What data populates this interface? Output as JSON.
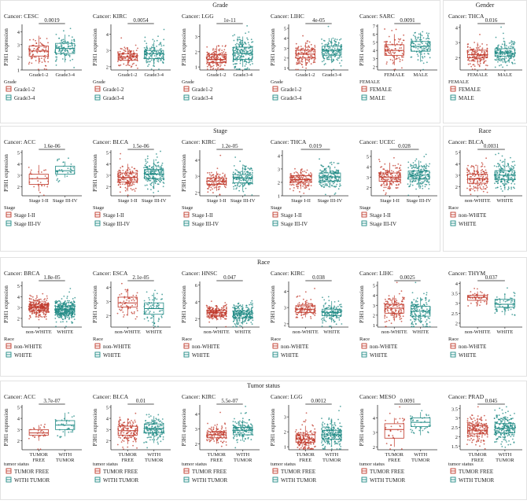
{
  "colors": {
    "group1": "#c0392b",
    "group2": "#1f8a84",
    "frame": "#222222",
    "axis": "#333333"
  },
  "sections": [
    {
      "label": "Grade",
      "panels": [
        0,
        1,
        2,
        3,
        4
      ]
    },
    {
      "label": "Gender",
      "panels": [
        5
      ]
    },
    {
      "label": "Stage",
      "panels": [
        6,
        7,
        8,
        9,
        10
      ]
    },
    {
      "label": "Race",
      "panels": [
        11
      ]
    },
    {
      "label": "Race",
      "panels": [
        12,
        13,
        14,
        15,
        16,
        17
      ]
    },
    {
      "label": "Tumor status",
      "panels": [
        18,
        19,
        20,
        21,
        22,
        23
      ]
    }
  ],
  "chart_data": [
    {
      "type": "box",
      "title": "Cancer: CESC",
      "ylabel": "P3H1 expression",
      "categories": [
        "Grade1-2",
        "Grade3-4"
      ],
      "medians": [
        2.5,
        2.7
      ],
      "q1": [
        2.1,
        2.3
      ],
      "q3": [
        2.9,
        3.1
      ],
      "whisker_low": [
        1.5,
        1.6
      ],
      "whisker_high": [
        3.7,
        3.8
      ],
      "ylim": [
        1.0,
        4.6
      ],
      "yticks": [
        1,
        2,
        3,
        4
      ],
      "pvalue": "0.0019",
      "legend_title": "Grade",
      "legend": [
        "Grade1-2",
        "Grade3-4"
      ]
    },
    {
      "type": "box",
      "title": "Cancer: KIRC",
      "ylabel": "P3H1 expression",
      "categories": [
        "Grade1-2",
        "Grade3-4"
      ],
      "medians": [
        2.6,
        2.8
      ],
      "q1": [
        2.4,
        2.5
      ],
      "q3": [
        2.8,
        3.0
      ],
      "whisker_low": [
        2.1,
        2.1
      ],
      "whisker_high": [
        3.2,
        3.5
      ],
      "ylim": [
        1.8,
        4.6
      ],
      "yticks": [
        2,
        3,
        4
      ],
      "pvalue": "0.0054",
      "legend_title": "Grade",
      "legend": [
        "Grade1-2",
        "Grade3-4"
      ]
    },
    {
      "type": "box",
      "title": "Cancer: LGG",
      "ylabel": "P3H1 expression",
      "categories": [
        "Grade1-2",
        "Grade3-4"
      ],
      "medians": [
        1.5,
        1.9
      ],
      "q1": [
        1.3,
        1.5
      ],
      "q3": [
        1.8,
        2.3
      ],
      "whisker_low": [
        1.0,
        1.0
      ],
      "whisker_high": [
        2.4,
        3.0
      ],
      "ylim": [
        0.8,
        3.8
      ],
      "yticks": [
        1,
        2,
        3
      ],
      "pvalue": "1e-11",
      "legend_title": "Grade",
      "legend": [
        "Grade1-2",
        "Grade3-4"
      ]
    },
    {
      "type": "box",
      "title": "Cancer: LIHC",
      "ylabel": "P3H1 expression",
      "categories": [
        "Grade1-2",
        "Grade3-4"
      ],
      "medians": [
        2.4,
        2.8
      ],
      "q1": [
        2.0,
        2.3
      ],
      "q3": [
        2.8,
        3.2
      ],
      "whisker_low": [
        1.4,
        1.5
      ],
      "whisker_high": [
        3.6,
        4.0
      ],
      "ylim": [
        0.8,
        5.4
      ],
      "yticks": [
        1,
        2,
        3,
        4,
        5
      ],
      "pvalue": "4e-05",
      "legend_title": "Grade",
      "legend": [
        "Grade1-2",
        "Grade3-4"
      ]
    },
    {
      "type": "box",
      "title": "Cancer: SARC",
      "ylabel": "P3H1 expression",
      "categories": [
        "FEMALE",
        "MALE"
      ],
      "medians": [
        4.0,
        4.5
      ],
      "q1": [
        3.4,
        3.9
      ],
      "q3": [
        4.7,
        5.1
      ],
      "whisker_low": [
        2.2,
        2.6
      ],
      "whisker_high": [
        6.0,
        6.2
      ],
      "ylim": [
        1.6,
        7.2
      ],
      "yticks": [
        2,
        3,
        4,
        5,
        6,
        7
      ],
      "pvalue": "0.0091",
      "legend_title": "FEMALE",
      "legend": [
        "FEMALE",
        "MALE"
      ]
    },
    {
      "type": "box",
      "title": "Cancer: THCA",
      "ylabel": "",
      "categories": [
        "FEMALE",
        "MALE"
      ],
      "medians": [
        2.2,
        2.3
      ],
      "q1": [
        2.0,
        2.1
      ],
      "q3": [
        2.5,
        2.6
      ],
      "whisker_low": [
        1.6,
        1.7
      ],
      "whisker_high": [
        3.0,
        3.1
      ],
      "ylim": [
        1.2,
        4.2
      ],
      "yticks": [
        2,
        3,
        4
      ],
      "pvalue": "0.016",
      "legend_title": "FEMALE",
      "legend": [
        "FEMALE",
        "MALE"
      ]
    },
    {
      "type": "box",
      "title": "Cancer: ACC",
      "ylabel": "P3H1 expression",
      "categories": [
        "Stage I-II",
        "Stage III-IV"
      ],
      "medians": [
        2.7,
        3.4
      ],
      "q1": [
        2.2,
        3.1
      ],
      "q3": [
        3.1,
        3.8
      ],
      "whisker_low": [
        1.6,
        2.8
      ],
      "whisker_high": [
        3.9,
        4.2
      ],
      "ylim": [
        1.2,
        5.2
      ],
      "yticks": [
        2,
        3,
        4,
        5
      ],
      "pvalue": "1.6e-06",
      "legend_title": "Stage",
      "legend": [
        "Stage I-II",
        "Stage III-IV"
      ]
    },
    {
      "type": "box",
      "title": "Cancer: BLCA",
      "ylabel": "P3H1 expression",
      "categories": [
        "Stage I-II",
        "Stage III-IV"
      ],
      "medians": [
        2.8,
        3.1
      ],
      "q1": [
        2.4,
        2.7
      ],
      "q3": [
        3.2,
        3.5
      ],
      "whisker_low": [
        1.6,
        1.8
      ],
      "whisker_high": [
        4.0,
        4.4
      ],
      "ylim": [
        1.2,
        5.2
      ],
      "yticks": [
        2,
        3,
        4,
        5
      ],
      "pvalue": "1.5e-06",
      "legend_title": "Stage",
      "legend": [
        "Stage I-II",
        "Stage III-IV"
      ]
    },
    {
      "type": "box",
      "title": "Cancer: KIRC",
      "ylabel": "P3H1 expression",
      "categories": [
        "Stage I-II",
        "Stage III-IV"
      ],
      "medians": [
        2.7,
        2.9
      ],
      "q1": [
        2.5,
        2.6
      ],
      "q3": [
        2.9,
        3.1
      ],
      "whisker_low": [
        2.1,
        2.1
      ],
      "whisker_high": [
        3.3,
        3.6
      ],
      "ylim": [
        1.8,
        4.6
      ],
      "yticks": [
        2,
        3,
        4
      ],
      "pvalue": "1.2e-05",
      "legend_title": "Stage",
      "legend": [
        "Stage I-II",
        "Stage III-IV"
      ]
    },
    {
      "type": "box",
      "title": "Cancer: THCA",
      "ylabel": "",
      "categories": [
        "Stage I-II",
        "Stage III-IV"
      ],
      "medians": [
        2.2,
        2.4
      ],
      "q1": [
        2.0,
        2.1
      ],
      "q3": [
        2.5,
        2.7
      ],
      "whisker_low": [
        1.5,
        1.6
      ],
      "whisker_high": [
        3.0,
        3.2
      ],
      "ylim": [
        1.0,
        4.4
      ],
      "yticks": [
        1,
        2,
        3,
        4
      ],
      "pvalue": "0.019",
      "legend_title": "Stage",
      "legend": [
        "Stage I-II",
        "Stage III-IV"
      ]
    },
    {
      "type": "box",
      "title": "Cancer: UCEC",
      "ylabel": "",
      "categories": [
        "Stage I-II",
        "Stage III-IV"
      ],
      "medians": [
        3.0,
        3.2
      ],
      "q1": [
        2.6,
        2.8
      ],
      "q3": [
        3.4,
        3.6
      ],
      "whisker_low": [
        1.8,
        2.0
      ],
      "whisker_high": [
        4.4,
        4.6
      ],
      "ylim": [
        1.2,
        5.6
      ],
      "yticks": [
        2,
        3,
        4,
        5
      ],
      "pvalue": "0.028",
      "legend_title": "Stage",
      "legend": [
        "Stage I-II",
        "Stage III-IV"
      ]
    },
    {
      "type": "box",
      "title": "Cancer: BLCA",
      "ylabel": "",
      "categories": [
        "non-WHITE",
        "WHITE"
      ],
      "medians": [
        2.7,
        3.0
      ],
      "q1": [
        2.3,
        2.6
      ],
      "q3": [
        3.1,
        3.4
      ],
      "whisker_low": [
        1.6,
        1.7
      ],
      "whisker_high": [
        3.9,
        4.3
      ],
      "ylim": [
        1.2,
        5.2
      ],
      "yticks": [
        2,
        3,
        4,
        5
      ],
      "pvalue": "0.0031",
      "legend_title": "Race",
      "legend": [
        "non-WHITE",
        "WHITE"
      ]
    },
    {
      "type": "box",
      "title": "Cancer: BRCA",
      "ylabel": "P3H1 expression",
      "categories": [
        "non-WHITE",
        "WHITE"
      ],
      "medians": [
        3.0,
        2.8
      ],
      "q1": [
        2.7,
        2.5
      ],
      "q3": [
        3.3,
        3.1
      ],
      "whisker_low": [
        2.1,
        1.9
      ],
      "whisker_high": [
        3.8,
        3.6
      ],
      "ylim": [
        1.2,
        5.4
      ],
      "yticks": [
        2,
        3,
        4,
        5
      ],
      "pvalue": "1.8e-05",
      "legend_title": "Race",
      "legend": [
        "non-WHITE",
        "WHITE"
      ]
    },
    {
      "type": "box",
      "title": "Cancer: ESCA",
      "ylabel": "P3H1 expression",
      "categories": [
        "non-WHITE",
        "WHITE"
      ],
      "medians": [
        2.9,
        2.5
      ],
      "q1": [
        2.6,
        2.1
      ],
      "q3": [
        3.3,
        2.9
      ],
      "whisker_low": [
        2.0,
        1.4
      ],
      "whisker_high": [
        3.9,
        3.6
      ],
      "ylim": [
        1.2,
        4.4
      ],
      "yticks": [
        2,
        3,
        4
      ],
      "pvalue": "2.1e-05",
      "legend_title": "Race",
      "legend": [
        "non-WHITE",
        "WHITE"
      ]
    },
    {
      "type": "box",
      "title": "Cancer: HNSC",
      "ylabel": "P3H1 expression",
      "categories": [
        "non-WHITE",
        "WHITE"
      ],
      "medians": [
        2.7,
        2.5
      ],
      "q1": [
        2.4,
        2.1
      ],
      "q3": [
        3.0,
        2.9
      ],
      "whisker_low": [
        1.8,
        1.3
      ],
      "whisker_high": [
        3.6,
        3.7
      ],
      "ylim": [
        1.0,
        6.4
      ],
      "yticks": [
        2,
        4,
        6
      ],
      "pvalue": "0.047",
      "legend_title": "Race",
      "legend": [
        "non-WHITE",
        "WHITE"
      ]
    },
    {
      "type": "box",
      "title": "Cancer: KIRC",
      "ylabel": "P3H1 expression",
      "categories": [
        "non-WHITE",
        "WHITE"
      ],
      "medians": [
        2.9,
        2.7
      ],
      "q1": [
        2.7,
        2.5
      ],
      "q3": [
        3.1,
        2.9
      ],
      "whisker_low": [
        2.4,
        2.1
      ],
      "whisker_high": [
        3.4,
        3.4
      ],
      "ylim": [
        1.8,
        4.6
      ],
      "yticks": [
        2,
        3,
        4
      ],
      "pvalue": "0.038",
      "legend_title": "Race",
      "legend": [
        "non-WHITE",
        "WHITE"
      ]
    },
    {
      "type": "box",
      "title": "Cancer: LIHC",
      "ylabel": "P3H1 expression",
      "categories": [
        "non-WHITE",
        "WHITE"
      ],
      "medians": [
        2.7,
        2.4
      ],
      "q1": [
        2.2,
        1.9
      ],
      "q3": [
        3.1,
        2.9
      ],
      "whisker_low": [
        1.4,
        1.2
      ],
      "whisker_high": [
        4.0,
        3.8
      ],
      "ylim": [
        0.8,
        5.4
      ],
      "yticks": [
        1,
        2,
        3,
        4,
        5
      ],
      "pvalue": "0.0025",
      "legend_title": "Race",
      "legend": [
        "non-WHITE",
        "WHITE"
      ]
    },
    {
      "type": "box",
      "title": "Cancer: THYM",
      "ylabel": "",
      "categories": [
        "non-WHITE",
        "WHITE"
      ],
      "medians": [
        3.3,
        2.95
      ],
      "q1": [
        3.15,
        2.8
      ],
      "q3": [
        3.4,
        3.2
      ],
      "whisker_low": [
        2.9,
        2.4
      ],
      "whisker_high": [
        3.6,
        3.5
      ],
      "ylim": [
        1.8,
        4.1
      ],
      "yticks": [
        2.0,
        2.5,
        3.0,
        3.5,
        4.0
      ],
      "pvalue": "0.037",
      "legend_title": "Race",
      "legend": [
        "non-WHITE",
        "WHITE"
      ]
    },
    {
      "type": "box",
      "title": "Cancer: ACC",
      "ylabel": "P3H1 expression",
      "categories": [
        "TUMOR FREE",
        "WITH TUMOR"
      ],
      "medians": [
        2.7,
        3.4
      ],
      "q1": [
        2.5,
        3.0
      ],
      "q3": [
        3.0,
        3.8
      ],
      "whisker_low": [
        2.0,
        2.4
      ],
      "whisker_high": [
        3.4,
        4.5
      ],
      "ylim": [
        1.2,
        5.2
      ],
      "yticks": [
        2,
        3,
        4,
        5
      ],
      "pvalue": "3.7e-07",
      "legend_title": "tumor status",
      "legend": [
        "TUMOR FREE",
        "WITH TUMOR"
      ]
    },
    {
      "type": "box",
      "title": "Cancer: BLCA",
      "ylabel": "P3H1 expression",
      "categories": [
        "TUMOR FREE",
        "WITH TUMOR"
      ],
      "medians": [
        2.9,
        3.1
      ],
      "q1": [
        2.5,
        2.7
      ],
      "q3": [
        3.3,
        3.5
      ],
      "whisker_low": [
        1.7,
        1.8
      ],
      "whisker_high": [
        4.0,
        4.2
      ],
      "ylim": [
        1.2,
        5.2
      ],
      "yticks": [
        2,
        3,
        4,
        5
      ],
      "pvalue": "0.01",
      "legend_title": "tumor status",
      "legend": [
        "TUMOR FREE",
        "WITH TUMOR"
      ]
    },
    {
      "type": "box",
      "title": "Cancer: KIRC",
      "ylabel": "P3H1 expression",
      "categories": [
        "TUMOR FREE",
        "WITH TUMOR"
      ],
      "medians": [
        2.6,
        2.9
      ],
      "q1": [
        2.4,
        2.6
      ],
      "q3": [
        2.8,
        3.1
      ],
      "whisker_low": [
        2.0,
        2.2
      ],
      "whisker_high": [
        3.2,
        3.6
      ],
      "ylim": [
        1.6,
        4.6
      ],
      "yticks": [
        2,
        3,
        4
      ],
      "pvalue": "5.5e-07",
      "legend_title": "tumor status",
      "legend": [
        "TUMOR FREE",
        "WITH TUMOR"
      ]
    },
    {
      "type": "box",
      "title": "Cancer: LGG",
      "ylabel": "P3H1 expression",
      "categories": [
        "TUMOR FREE",
        "WITH TUMOR"
      ],
      "medians": [
        1.5,
        1.8
      ],
      "q1": [
        1.3,
        1.5
      ],
      "q3": [
        1.8,
        2.1
      ],
      "whisker_low": [
        1.0,
        1.0
      ],
      "whisker_high": [
        2.4,
        2.8
      ],
      "ylim": [
        0.8,
        3.8
      ],
      "yticks": [
        1,
        2,
        3
      ],
      "pvalue": "0.0012",
      "legend_title": "tumor status",
      "legend": [
        "TUMOR FREE",
        "WITH TUMOR"
      ]
    },
    {
      "type": "box",
      "title": "Cancer: MESO",
      "ylabel": "P3H1 expression",
      "categories": [
        "TUMOR FREE",
        "WITH TUMOR"
      ],
      "medians": [
        3.2,
        3.7
      ],
      "q1": [
        2.6,
        3.4
      ],
      "q3": [
        3.6,
        4.0
      ],
      "whisker_low": [
        2.0,
        2.8
      ],
      "whisker_high": [
        4.0,
        4.4
      ],
      "ylim": [
        1.8,
        4.9
      ],
      "yticks": [
        2,
        3,
        4
      ],
      "pvalue": "0.0091",
      "legend_title": "tumor status",
      "legend": [
        "TUMOR FREE",
        "WITH TUMOR"
      ]
    },
    {
      "type": "box",
      "title": "Cancer: PRAD",
      "ylabel": "",
      "categories": [
        "TUMOR FREE",
        "WITH TUMOR"
      ],
      "medians": [
        2.35,
        2.45
      ],
      "q1": [
        2.15,
        2.2
      ],
      "q3": [
        2.6,
        2.7
      ],
      "whisker_low": [
        1.8,
        1.8
      ],
      "whisker_high": [
        3.0,
        3.1
      ],
      "ylim": [
        1.3,
        3.7
      ],
      "yticks": [
        1.5,
        2.0,
        2.5,
        3.0,
        3.5
      ],
      "pvalue": "0.045",
      "legend_title": "tumor status",
      "legend": [
        "TUMOR FREE",
        "WITH TUMOR"
      ]
    }
  ]
}
